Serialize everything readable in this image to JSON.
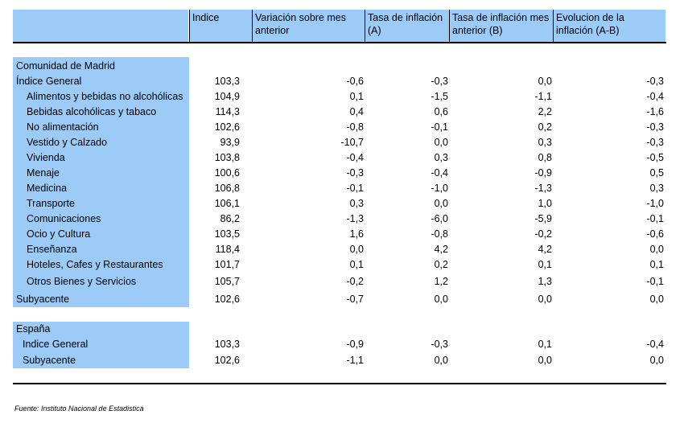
{
  "header": {
    "columns": [
      "Indice",
      "Variación sobre mes anterior",
      "Tasa de inflación (A)",
      "Tasa de inflación mes anterior (B)",
      "Evolucion de la inflación (A-B)"
    ]
  },
  "madrid": {
    "title": "Comunidad de Madrid",
    "rows": [
      {
        "label": "Índice General",
        "values": [
          "103,3",
          "-0,6",
          "-0,3",
          "0,0",
          "-0,3"
        ]
      },
      {
        "label": "Alimentos y bebidas no alcohólicas",
        "values": [
          "104,9",
          "0,1",
          "-1,5",
          "-1,1",
          "-0,4"
        ]
      },
      {
        "label": "Bebidas alcohólicas y tabaco",
        "values": [
          "114,3",
          "0,4",
          "0,6",
          "2,2",
          "-1,6"
        ]
      },
      {
        "label": "No alimentación",
        "values": [
          "102,6",
          "-0,8",
          "-0,1",
          "0,2",
          "-0,3"
        ]
      },
      {
        "label": "Vestido y Calzado",
        "values": [
          "93,9",
          "-10,7",
          "0,0",
          "0,3",
          "-0,3"
        ]
      },
      {
        "label": "Vivienda",
        "values": [
          "103,8",
          "-0,4",
          "0,3",
          "0,8",
          "-0,5"
        ]
      },
      {
        "label": "Menaje",
        "values": [
          "100,6",
          "-0,3",
          "-0,4",
          "-0,9",
          "0,5"
        ]
      },
      {
        "label": "Medicina",
        "values": [
          "106,8",
          "-0,1",
          "-1,0",
          "-1,3",
          "0,3"
        ]
      },
      {
        "label": "Transporte",
        "values": [
          "106,1",
          "0,3",
          "0,0",
          "1,0",
          "-1,0"
        ]
      },
      {
        "label": "Comunicaciones",
        "values": [
          "86,2",
          "-1,3",
          "-6,0",
          "-5,9",
          "-0,1"
        ]
      },
      {
        "label": "Ocio y Cultura",
        "values": [
          "103,5",
          "1,6",
          "-0,8",
          "-0,2",
          "-0,6"
        ]
      },
      {
        "label": "Enseñanza",
        "values": [
          "118,4",
          "0,0",
          "4,2",
          "4,2",
          "0,0"
        ]
      },
      {
        "label": "Hoteles, Cafes y Restaurantes",
        "values": [
          "101,7",
          "0,1",
          "0,2",
          "0,1",
          "0,1"
        ]
      },
      {
        "label": "Otros Bienes y Servicios",
        "values": [
          "105,7",
          "-0,2",
          "1,2",
          "1,3",
          "-0,1"
        ]
      },
      {
        "label": "Subyacente",
        "values": [
          "102,6",
          "-0,7",
          "0,0",
          "0,0",
          "0,0"
        ]
      }
    ]
  },
  "espana": {
    "title": "España",
    "rows": [
      {
        "label": "Indice General",
        "values": [
          "103,3",
          "-0,9",
          "-0,3",
          "0,1",
          "-0,4"
        ]
      },
      {
        "label": "Subyacente",
        "values": [
          "102,6",
          "-1,1",
          "0,0",
          "0,0",
          "0,0"
        ]
      }
    ]
  },
  "source": "Fuente: Instituto Nacional de Estadistica",
  "colors": {
    "header_fill": "#9ccbf7",
    "text": "#000000"
  }
}
